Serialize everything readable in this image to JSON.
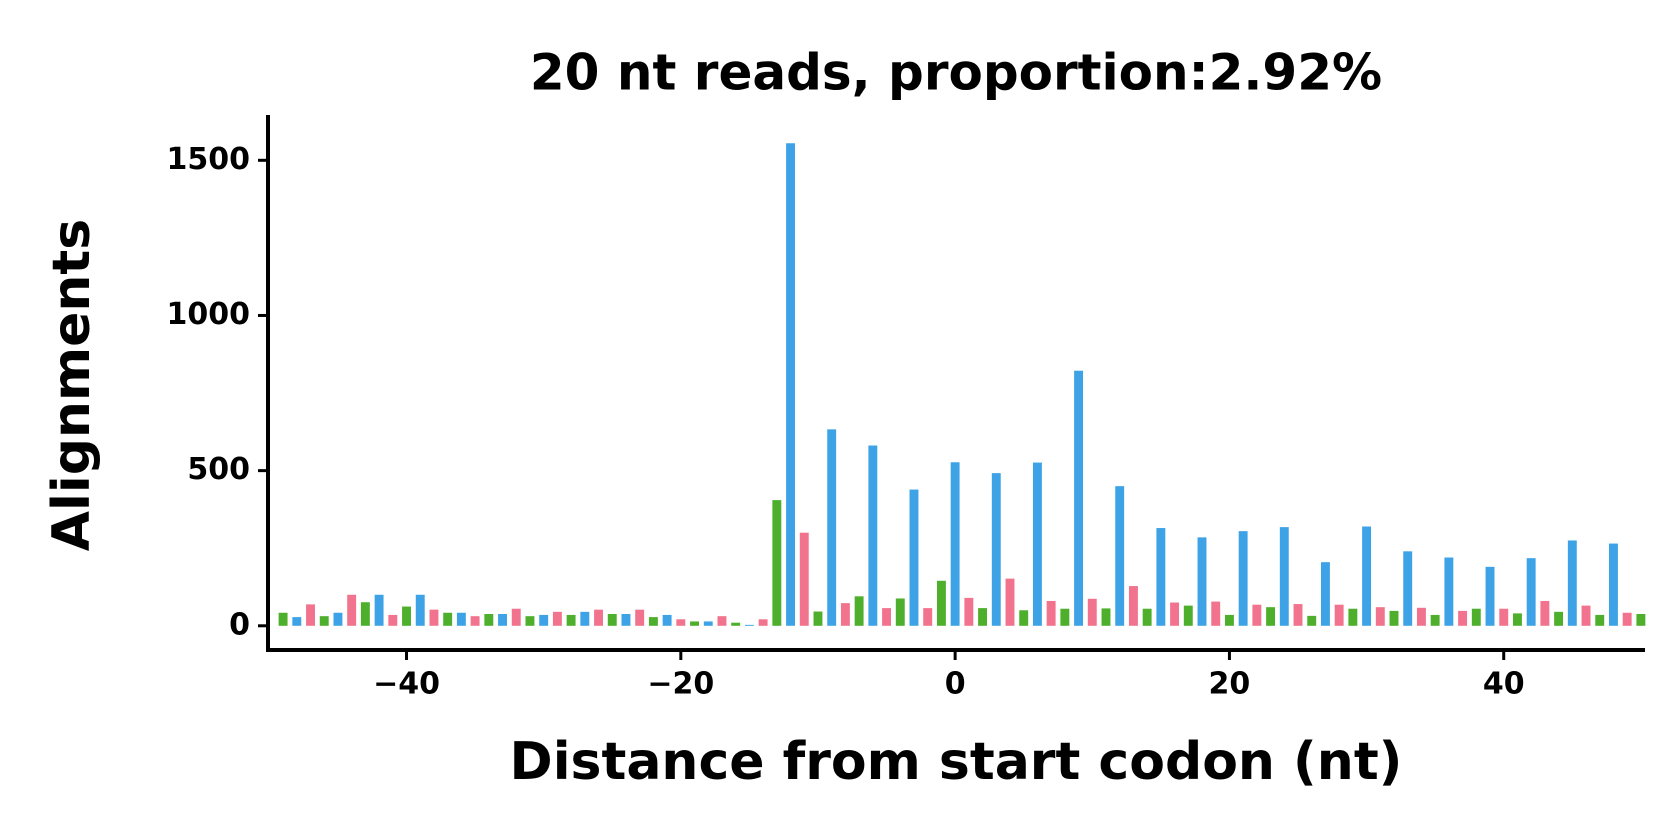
{
  "chart_data": {
    "type": "bar",
    "title": "20 nt reads, proportion:2.92%",
    "x_label": "Distance from start codon (nt)",
    "y_label": "Alignments",
    "xlim": [
      -50.1,
      50.3
    ],
    "ylim": [
      -78,
      1646
    ],
    "xticks": [
      {
        "value": -40,
        "label": "−40"
      },
      {
        "value": -20,
        "label": "−20"
      },
      0,
      20,
      40
    ],
    "yticks": [
      0,
      500,
      1000,
      1500
    ],
    "grid": false,
    "series": [
      {
        "color": "#4daf2c",
        "x": [
          -49,
          -46,
          -43,
          -40,
          -37,
          -34,
          -31,
          -28,
          -25,
          -22,
          -19,
          -16,
          -13,
          -10,
          -7,
          -4,
          -1,
          2,
          5,
          8,
          11,
          14,
          17,
          20,
          23,
          26,
          29,
          32,
          35,
          38,
          41,
          44,
          47,
          50
        ],
        "values": [
          42,
          31,
          76,
          62,
          42,
          38,
          31,
          35,
          38,
          28,
          14,
          10,
          405,
          46,
          95,
          88,
          145,
          57,
          50,
          55,
          56,
          55,
          65,
          35,
          60,
          32,
          55,
          48,
          35,
          55,
          40,
          45,
          35,
          38
        ]
      },
      {
        "color": "#3ea3e6",
        "x": [
          -48,
          -45,
          -42,
          -39,
          -36,
          -33,
          -30,
          -27,
          -24,
          -21,
          -18,
          -15,
          -12,
          -9,
          -6,
          -3,
          0,
          3,
          6,
          9,
          12,
          15,
          18,
          21,
          24,
          27,
          30,
          33,
          36,
          39,
          42,
          45,
          48
        ],
        "values": [
          28,
          42,
          100,
          100,
          42,
          38,
          35,
          45,
          38,
          35,
          14,
          3,
          1555,
          633,
          581,
          439,
          527,
          492,
          526,
          822,
          450,
          315,
          285,
          305,
          318,
          205,
          320,
          240,
          220,
          190,
          218,
          275,
          265
        ]
      },
      {
        "color": "#f2738d",
        "x": [
          -47,
          -44,
          -41,
          -38,
          -35,
          -32,
          -29,
          -26,
          -23,
          -20,
          -17,
          -14,
          -11,
          -8,
          -5,
          -2,
          1,
          4,
          7,
          10,
          13,
          16,
          19,
          22,
          25,
          28,
          31,
          34,
          37,
          40,
          43,
          46,
          49
        ],
        "values": [
          69,
          100,
          35,
          52,
          31,
          55,
          45,
          52,
          52,
          21,
          31,
          21,
          300,
          73,
          57,
          57,
          90,
          152,
          80,
          87,
          128,
          75,
          78,
          68,
          70,
          68,
          60,
          58,
          48,
          55,
          80,
          65,
          42
        ]
      }
    ]
  }
}
